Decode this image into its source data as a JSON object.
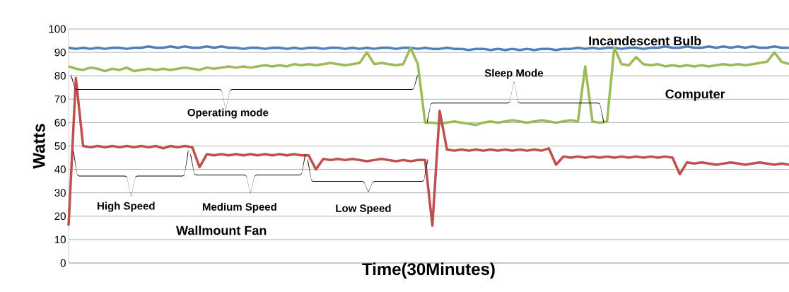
{
  "chart_data": {
    "type": "line",
    "xlabel": "Time(30Minutes)",
    "ylabel": "Watts",
    "ylim": [
      0,
      100
    ],
    "yticks": [
      0,
      10,
      20,
      30,
      40,
      50,
      60,
      70,
      80,
      90,
      100
    ],
    "grid": "y",
    "categories": [
      null,
      null,
      null,
      null,
      null,
      null,
      null,
      null,
      null,
      null,
      null,
      null,
      null,
      null,
      null,
      null,
      null,
      null,
      null,
      null,
      null,
      null,
      null,
      null,
      null,
      null,
      null,
      null,
      null,
      null,
      null,
      null,
      null,
      null,
      null,
      null,
      null,
      null,
      null,
      null,
      null,
      null,
      null,
      null,
      null,
      null,
      null,
      null,
      null,
      null,
      null,
      null,
      null,
      null,
      null,
      null,
      null,
      null,
      null,
      null,
      null,
      null,
      null,
      null,
      null,
      null,
      null,
      null,
      null,
      null,
      null,
      null,
      null,
      null,
      null,
      null,
      null,
      null,
      null,
      null,
      null,
      null,
      null,
      null,
      null,
      null,
      null,
      null,
      null,
      null,
      null,
      null,
      null,
      null,
      null,
      null,
      null,
      null,
      null,
      null
    ],
    "series": [
      {
        "name": "Incandescent Bulb",
        "color": "#4f81bd",
        "values": [
          92,
          91.5,
          92,
          91.5,
          92,
          91.5,
          92,
          92,
          91.5,
          92,
          92,
          92.5,
          92,
          92,
          92.5,
          92,
          92.5,
          92,
          92,
          92.5,
          92,
          92.5,
          92,
          92,
          91.5,
          92,
          92,
          91.5,
          92,
          92,
          91.5,
          92,
          91.5,
          92,
          92,
          91.5,
          92,
          92,
          91.5,
          92,
          91.5,
          92,
          91.5,
          92,
          92,
          91.5,
          92,
          92,
          91.5,
          92,
          91.5,
          91.5,
          92,
          91.5,
          91.5,
          91,
          91.5,
          91.5,
          91,
          91.5,
          91,
          91.5,
          91,
          91.5,
          91,
          91.5,
          91.5,
          91,
          91.5,
          91.5,
          92,
          91.5,
          92,
          91.5,
          92,
          92,
          91.5,
          92,
          92,
          91.5,
          92,
          92,
          92.5,
          92,
          92,
          92.5,
          92,
          92,
          92.5,
          92,
          92.5,
          92,
          92.5,
          92,
          92.5,
          92,
          92,
          92.5,
          92,
          92
        ]
      },
      {
        "name": "Computer",
        "color": "#9bbb59",
        "values": [
          84,
          83,
          82.5,
          83.5,
          83,
          82,
          83,
          82.5,
          83.5,
          82,
          82.5,
          83,
          82.5,
          83,
          82.5,
          83,
          83.5,
          83,
          82.5,
          83.5,
          83,
          83.5,
          84,
          83.5,
          84,
          83.5,
          84,
          84.5,
          84,
          84.5,
          84,
          85,
          84.5,
          85,
          84.5,
          85,
          85.5,
          85,
          84.5,
          85,
          85.5,
          90,
          85,
          85.5,
          85,
          84.5,
          85,
          92,
          85,
          60,
          60,
          59.5,
          60,
          60.5,
          60,
          59.5,
          59,
          60,
          60.5,
          60,
          60.5,
          61,
          60.5,
          60,
          60.5,
          61,
          60.5,
          60,
          60.5,
          61,
          60.5,
          84,
          60.5,
          60,
          60.5,
          92,
          85,
          84.5,
          88,
          85,
          84.5,
          85,
          84,
          84.5,
          84,
          84.5,
          84,
          84.5,
          84,
          84.5,
          85,
          84.5,
          85,
          84.5,
          85,
          85.5,
          86,
          90,
          86,
          85
        ]
      },
      {
        "color": "#c0504d",
        "values": [
          16,
          79,
          50,
          49.5,
          50,
          49.5,
          50,
          49.5,
          50,
          49.5,
          50,
          49.5,
          50,
          49,
          50,
          49.5,
          50,
          49.5,
          41,
          46.5,
          46,
          46.5,
          46,
          46.5,
          46,
          46.5,
          46,
          46.5,
          46,
          46.5,
          46,
          46.5,
          46,
          46,
          40,
          44.5,
          44,
          44.5,
          44,
          44.5,
          44,
          43.5,
          44,
          44.5,
          44,
          43.5,
          44,
          43.5,
          44,
          44,
          16,
          65,
          48.5,
          48,
          48.5,
          48,
          48.5,
          48,
          48.5,
          48,
          48.5,
          48,
          48.5,
          48,
          48.5,
          48,
          49,
          42,
          45.5,
          45,
          45.5,
          45,
          45.5,
          45,
          45.5,
          45,
          45.5,
          45,
          45.5,
          45,
          45.5,
          45,
          45.5,
          45,
          38,
          43,
          42.5,
          43,
          42.5,
          42,
          42.5,
          43,
          42.5,
          42,
          42.5,
          43,
          42.5,
          42,
          42.5,
          42
        ]
      }
    ],
    "annotations": [
      "Operating mode",
      "Sleep Mode",
      "High Speed",
      "Medium Speed",
      "Low Speed",
      "Wallmount Fan"
    ]
  }
}
